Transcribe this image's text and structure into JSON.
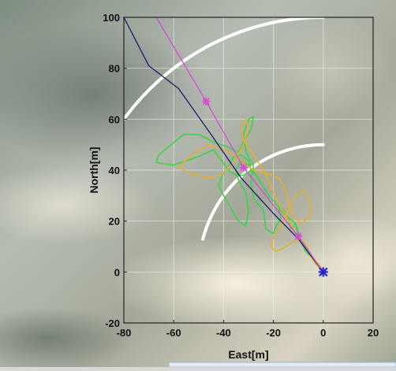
{
  "chart_data": {
    "type": "line",
    "title": "",
    "xlabel": "East[m]",
    "ylabel": "North[m]",
    "xlim": [
      -80,
      20
    ],
    "ylim": [
      -20,
      100
    ],
    "xticks": [
      -80,
      -60,
      -40,
      -20,
      0,
      20
    ],
    "yticks": [
      -20,
      0,
      20,
      40,
      60,
      80,
      100
    ],
    "grid": true,
    "legend": "none",
    "background": "aerial satellite imagery",
    "range_arcs": [
      {
        "radius": 50,
        "color": "#ffffff",
        "angle_from_east_deg": [
          90,
          165
        ]
      },
      {
        "radius": 100,
        "color": "#ffffff",
        "angle_from_east_deg": [
          90,
          165
        ]
      }
    ],
    "series": [
      {
        "color": "#d44bd8",
        "style": "line-with-markers",
        "x": [
          -67,
          -47,
          -32,
          -10,
          0
        ],
        "y": [
          100,
          67,
          41,
          14,
          0
        ],
        "marker_x": [
          -47,
          -32,
          -10
        ],
        "marker_y": [
          67,
          41,
          14
        ]
      },
      {
        "color": "#1a1a6e",
        "style": "line",
        "x": [
          -80,
          -70,
          -58,
          -45,
          -33,
          -20,
          -10,
          0
        ],
        "y": [
          100,
          81,
          72,
          54,
          37,
          23,
          13,
          0
        ]
      },
      {
        "color": "#3cd24a",
        "style": "track",
        "x": [
          -1,
          -4,
          -7,
          -10,
          -11,
          -16,
          -18,
          -17,
          -19,
          -20,
          -23,
          -24,
          -28,
          -29,
          -28,
          -31,
          -32,
          -30,
          -28,
          -29,
          -32,
          -34,
          -38,
          -44,
          -50,
          -56,
          -66,
          -67,
          -60,
          -51,
          -44,
          -41,
          -38,
          -35,
          -32,
          -29,
          -30,
          -33,
          -36,
          -38,
          -40,
          -42,
          -40,
          -37,
          -34,
          -31,
          -30,
          -31,
          -34,
          -35,
          -33,
          -30,
          -27,
          -25,
          -22,
          -19,
          -16,
          -14,
          -13,
          -11,
          -9,
          -7,
          -4,
          -2,
          -1
        ],
        "y": [
          1,
          5,
          9,
          14,
          19,
          23,
          26,
          21,
          18,
          15,
          17,
          24,
          29,
          35,
          42,
          47,
          54,
          60,
          61,
          56,
          51,
          47,
          49,
          51,
          54,
          54,
          46,
          43,
          42,
          45,
          48,
          44,
          40,
          38,
          38,
          40,
          44,
          46,
          45,
          41,
          39,
          34,
          30,
          25,
          20,
          18,
          24,
          31,
          36,
          40,
          44,
          42,
          38,
          35,
          30,
          27,
          24,
          21,
          17,
          19,
          12,
          8,
          5,
          3,
          1
        ]
      },
      {
        "color": "#e3b12e",
        "style": "track",
        "x": [
          0,
          -3,
          -5,
          -7,
          -9,
          -12,
          -15,
          -19,
          -21,
          -20,
          -17,
          -15,
          -13,
          -11,
          -8,
          -6,
          -5,
          -6,
          -9,
          -12,
          -14,
          -15,
          -17,
          -20,
          -24,
          -28,
          -32,
          -36,
          -40,
          -46,
          -54,
          -58,
          -54,
          -47,
          -41,
          -36,
          -32,
          -30,
          -31,
          -33,
          -32,
          -28,
          -24,
          -21,
          -19,
          -17,
          -15,
          -13,
          -11,
          -8,
          -6,
          -5,
          -3,
          -1,
          0
        ],
        "y": [
          1,
          3,
          6,
          10,
          13,
          12,
          10,
          8,
          10,
          14,
          18,
          22,
          27,
          30,
          32,
          29,
          25,
          21,
          19,
          22,
          27,
          32,
          36,
          38,
          39,
          40,
          43,
          46,
          48,
          50,
          45,
          41,
          39,
          37,
          38,
          43,
          50,
          56,
          60,
          57,
          52,
          46,
          40,
          34,
          29,
          25,
          22,
          19,
          15,
          12,
          9,
          6,
          4,
          2,
          1
        ]
      }
    ],
    "origin_marker": {
      "x": 0,
      "y": 0,
      "color": "#2424c8"
    }
  }
}
